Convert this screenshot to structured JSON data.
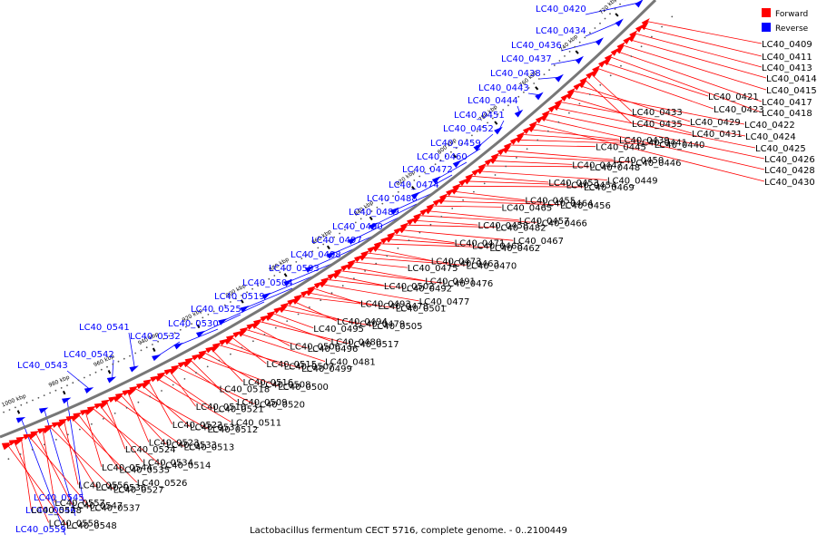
{
  "colors": {
    "forward": "#ff0000",
    "reverse": "#0000ff",
    "backbone": "#777777",
    "text": "#000000"
  },
  "legend": {
    "forward": "Forward",
    "reverse": "Reverse"
  },
  "caption": "Lactobacillus fermentum CECT 5716, complete genome. - 0..2100449",
  "ticks": [
    "720 kbp",
    "740 kbp",
    "760 kbp",
    "780 kbp",
    "800 kbp",
    "820 kbp",
    "840 kbp",
    "860 kbp",
    "880 kbp",
    "900 kbp",
    "920 kbp",
    "940 kbp",
    "960 kbp",
    "980 kbp",
    "1000 kbp"
  ],
  "forward_labels": [
    "LC40_0409",
    "LC40_0411",
    "LC40_0413",
    "LC40_0414",
    "LC40_0415",
    "LC40_0417",
    "LC40_0418",
    "LC40_0421",
    "LC40_0423",
    "LC40_0433",
    "LC40_0435",
    "LC40_0429",
    "LC40_0422",
    "LC40_0431",
    "LC40_0424",
    "LC40_0425",
    "LC40_0426",
    "LC40_0428",
    "LC40_0430",
    "LC40_0439",
    "LC40_0441",
    "LC40_0440",
    "LC40_0445",
    "LC40_0450",
    "LC40_0446",
    "LC40_0447",
    "LC40_0448",
    "LC40_0449",
    "LC40_0453",
    "LC40_0454",
    "LC40_0469",
    "LC40_0455",
    "LC40_0464",
    "LC40_0456",
    "LC40_0465",
    "LC40_0457",
    "LC40_0466",
    "LC40_0458",
    "LC40_0482",
    "LC40_0467",
    "LC40_0471",
    "LC40_0468",
    "LC40_0462",
    "LC40_0473",
    "LC40_0463",
    "LC40_0470",
    "LC40_0475",
    "LC40_0491",
    "LC40_0476",
    "LC40_0502",
    "LC40_0492",
    "LC40_0477",
    "LC40_0493",
    "LC40_0478",
    "LC40_0501",
    "LC40_0494",
    "LC40_0479",
    "LC40_0505",
    "LC40_0495",
    "LC40_0480",
    "LC40_0517",
    "LC40_0506",
    "LC40_0496",
    "LC40_0481",
    "LC40_0515",
    "LC40_0507",
    "LC40_0499",
    "LC40_0516",
    "LC40_0508",
    "LC40_0500",
    "LC40_0518",
    "LC40_0509",
    "LC40_0520",
    "LC40_0510",
    "LC40_0521",
    "LC40_0511",
    "LC40_0522",
    "LC40_0531",
    "LC40_0512",
    "LC40_0523",
    "LC40_0533",
    "LC40_0513",
    "LC40_0524",
    "LC40_0534",
    "LC40_0514",
    "LC40_0544",
    "LC40_0535",
    "LC40_0526",
    "LC40_0556",
    "LC40_0536",
    "LC40_0527",
    "LC40_0557",
    "LC40_0547",
    "LC40_0537",
    "LC40_0528",
    "LC40_0558",
    "LC40_0548"
  ],
  "reverse_labels": [
    "LC40_0420",
    "LC40_0434",
    "LC40_0436",
    "LC40_0437",
    "LC40_0438",
    "LC40_0443",
    "LC40_0444",
    "LC40_0451",
    "LC40_0452",
    "LC40_0459",
    "LC40_0460",
    "LC40_0472",
    "LC40_0474",
    "LC40_0488",
    "LC40_0489",
    "LC40_0490",
    "LC40_0497",
    "LC40_0498",
    "LC40_0503",
    "LC40_0504",
    "LC40_0519",
    "LC40_0525",
    "LC40_0530",
    "LC40_0532",
    "LC40_0541",
    "LC40_0542",
    "LC40_0543",
    "LC40_0545",
    "LC40_0546",
    "LC40_0559"
  ]
}
